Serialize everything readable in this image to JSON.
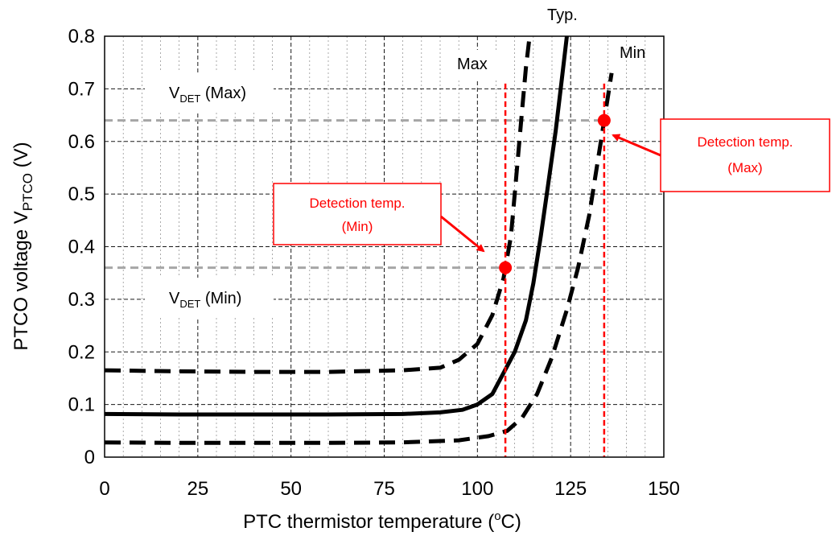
{
  "chart_data": {
    "type": "line",
    "xlabel_main": "PTC thermistor temperature (",
    "xlabel_sup": "o",
    "xlabel_end": "C)",
    "ylabel_main": "PTCO voltage V",
    "ylabel_sub": "PTCO",
    "ylabel_end": " (V)",
    "xlim": [
      0,
      150
    ],
    "ylim": [
      0,
      0.8
    ],
    "xticks": [
      0,
      25,
      50,
      75,
      100,
      125,
      150
    ],
    "yticks": [
      "0",
      "0.1",
      "0.2",
      "0.3",
      "0.4",
      "0.5",
      "0.6",
      "0.7",
      "0.8"
    ],
    "grid": true,
    "series": [
      {
        "name": "Typ.",
        "style": "solid",
        "x": [
          0,
          20,
          40,
          60,
          80,
          90,
          96,
          100,
          104,
          107,
          110,
          113,
          115,
          117,
          119,
          121,
          122.5,
          124
        ],
        "y": [
          0.082,
          0.081,
          0.081,
          0.081,
          0.082,
          0.085,
          0.09,
          0.1,
          0.12,
          0.16,
          0.2,
          0.26,
          0.33,
          0.42,
          0.52,
          0.62,
          0.71,
          0.8
        ]
      },
      {
        "name": "Max",
        "style": "dashed",
        "x": [
          0,
          20,
          40,
          60,
          80,
          90,
          95,
          100,
          104,
          107,
          109,
          110,
          111,
          112,
          113,
          114
        ],
        "y": [
          0.165,
          0.163,
          0.162,
          0.162,
          0.165,
          0.17,
          0.185,
          0.215,
          0.27,
          0.34,
          0.42,
          0.5,
          0.58,
          0.66,
          0.74,
          0.8
        ]
      },
      {
        "name": "Min",
        "style": "dashed",
        "x": [
          0,
          20,
          40,
          60,
          80,
          95,
          103,
          108,
          112,
          116,
          120,
          124,
          127,
          130,
          132,
          134,
          136
        ],
        "y": [
          0.028,
          0.027,
          0.027,
          0.027,
          0.028,
          0.032,
          0.04,
          0.05,
          0.075,
          0.12,
          0.19,
          0.28,
          0.36,
          0.46,
          0.55,
          0.64,
          0.73
        ]
      }
    ],
    "thresholds": [
      {
        "label_main": "V",
        "label_sub": "DET",
        "label_end": " (Max)",
        "y": 0.64,
        "x_end": 135
      },
      {
        "label_main": "V",
        "label_sub": "DET",
        "label_end": " (Min)",
        "y": 0.36,
        "x_end": 135
      }
    ],
    "detection_lines_x": [
      107.5,
      134
    ],
    "detection_points": [
      {
        "x": 107.5,
        "y": 0.36,
        "label_line1": "Detection temp.",
        "label_line2": "(Min)"
      },
      {
        "x": 134,
        "y": 0.64,
        "label_line1": "Detection temp.",
        "label_line2": "(Max)"
      }
    ],
    "colors": {
      "curve": "#000000",
      "threshold": "#a6a6a6",
      "detection": "#ff0000",
      "grid": "#000000"
    }
  }
}
